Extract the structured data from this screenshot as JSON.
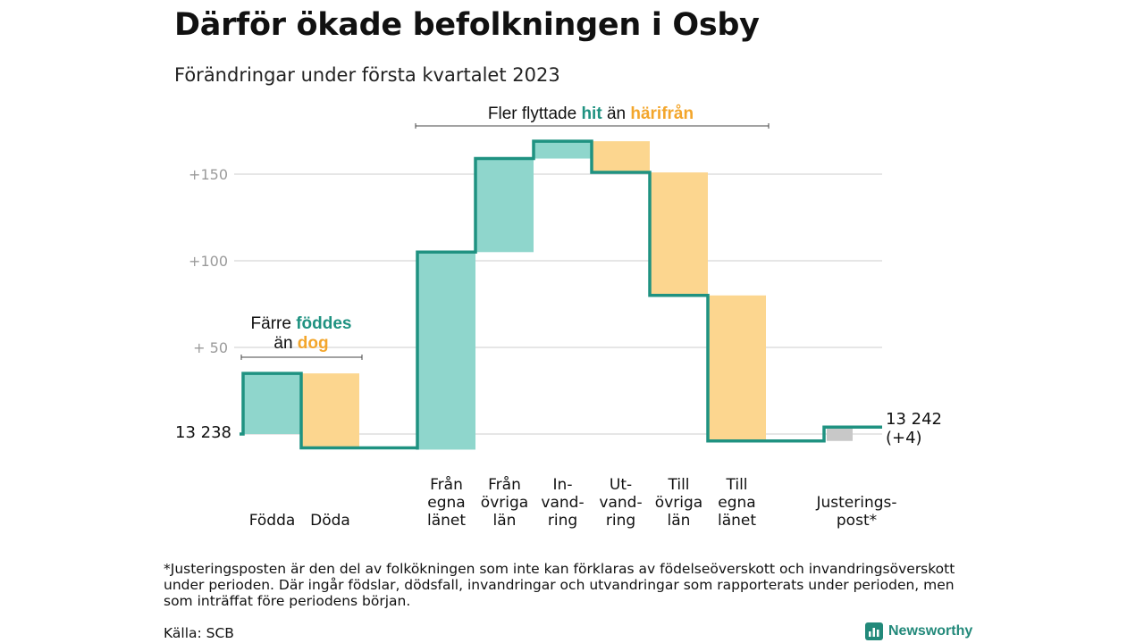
{
  "header": {
    "title": "Därför ökade befolkningen i Osby",
    "subtitle": "Förändringar under första kvartalet 2023"
  },
  "annotations": {
    "births_deaths": {
      "line1": "Färre",
      "line1_hl": "föddes",
      "line2": "än",
      "line2_hl": "dog"
    },
    "migration": {
      "part1": "Fler flyttade",
      "hl1": "hit",
      "part2": "än",
      "hl2": "härifrån"
    }
  },
  "chart_data": {
    "type": "waterfall",
    "title": "Därför ökade befolkningen i Osby",
    "subtitle": "Förändringar under första kvartalet 2023",
    "start_label": "13 238",
    "end_label": [
      "13 242",
      "(+4)"
    ],
    "y_ticks": [
      "+150",
      "+100",
      "+ 50"
    ],
    "y_tick_values": [
      150,
      100,
      50
    ],
    "ylim": [
      -12,
      170
    ],
    "grid": true,
    "steps": [
      {
        "label": [
          "Födda"
        ],
        "start": 0,
        "end": 35,
        "kind": "in"
      },
      {
        "label": [
          "Döda"
        ],
        "start": 35,
        "end": -8,
        "kind": "out"
      },
      {
        "label": [],
        "start": -8,
        "end": -8,
        "kind": "gap"
      },
      {
        "label": [
          "Från",
          "egna",
          "länet"
        ],
        "start": -9,
        "end": 105,
        "kind": "in"
      },
      {
        "label": [
          "Från",
          "övriga",
          "län"
        ],
        "start": 105,
        "end": 159,
        "kind": "in"
      },
      {
        "label": [
          "In-",
          "vand-",
          "ring"
        ],
        "start": 159,
        "end": 169,
        "kind": "in"
      },
      {
        "label": [
          "Ut-",
          "vand-",
          "ring"
        ],
        "start": 169,
        "end": 151,
        "kind": "out"
      },
      {
        "label": [
          "Till",
          "övriga",
          "län"
        ],
        "start": 151,
        "end": 80,
        "kind": "out"
      },
      {
        "label": [
          "Till",
          "egna",
          "länet"
        ],
        "start": 80,
        "end": -4,
        "kind": "out"
      },
      {
        "label": [],
        "start": -4,
        "end": -4,
        "kind": "gap"
      },
      {
        "label": [
          "Justerings-",
          "post*"
        ],
        "start": -4,
        "end": 4,
        "kind": "adj"
      }
    ],
    "colors": {
      "in": "#8fd6cc",
      "out": "#fcd68f",
      "adj": "#c8c8c8",
      "line": "#1f9281",
      "hit": "#1f9281",
      "harifran": "#f3a62c",
      "grid": "#dddddd"
    }
  },
  "footnote": "*Justeringsposten är den del av folkökningen som inte kan förklaras av födelseöverskott och invandringsöverskott under perioden. Där ingår födslar, dödsfall, invandringar och utvandringar som rapporterats under perioden, men som inträffat före periodens början.",
  "source": "Källa: SCB",
  "brand": {
    "name": "Newsworthy",
    "icon": "bar-chart-logo-icon",
    "color": "#22897a"
  }
}
